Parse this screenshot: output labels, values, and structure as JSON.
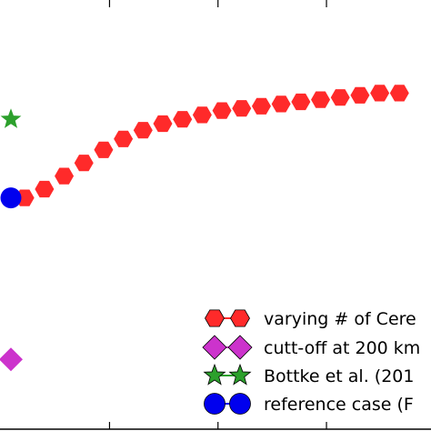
{
  "chart_data": {
    "type": "scatter",
    "title": "",
    "xlabel": "",
    "ylabel": "",
    "xlim": [
      0.3,
      21.6
    ],
    "ylim": [
      0,
      1
    ],
    "x_ticks": [
      5.3,
      10.8,
      16.3
    ],
    "grid": false,
    "legend_position": "bottom-right",
    "series": [
      {
        "name": "varying # of Cere",
        "marker": "hexagon",
        "color": "#ff2a2a",
        "x": [
          1,
          2,
          3,
          4,
          5,
          6,
          7,
          8,
          9,
          10,
          11,
          12,
          13,
          14,
          15,
          16,
          17,
          18,
          19,
          20
        ],
        "y": [
          0.53,
          0.55,
          0.58,
          0.61,
          0.64,
          0.665,
          0.685,
          0.7,
          0.71,
          0.72,
          0.73,
          0.735,
          0.74,
          0.745,
          0.75,
          0.755,
          0.76,
          0.765,
          0.77,
          0.77
        ]
      },
      {
        "name": "cutt-off at 200 km",
        "marker": "diamond",
        "color": "#cc33cc",
        "x": [
          0.3
        ],
        "y": [
          0.16
        ]
      },
      {
        "name": "Bottke et al. (201",
        "marker": "star",
        "color": "#2ca02c",
        "x": [
          0.3
        ],
        "y": [
          0.71
        ]
      },
      {
        "name": "reference case (F",
        "marker": "circle",
        "color": "#0000ee",
        "x": [
          0.3
        ],
        "y": [
          0.53
        ]
      }
    ]
  }
}
